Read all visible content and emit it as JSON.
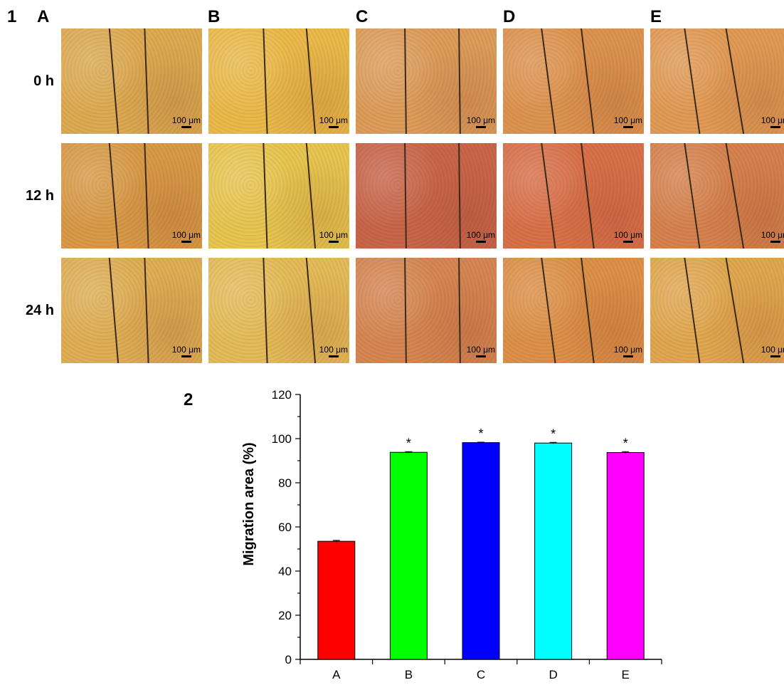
{
  "panel1_label": "1",
  "panel2_label": "2",
  "columns": [
    "A",
    "B",
    "C",
    "D",
    "E"
  ],
  "rows": [
    "0 h",
    "12 h",
    "24 h"
  ],
  "scale_bar_label": "100 μm",
  "tile_colors": [
    [
      "#dcaa52",
      "#eab94a",
      "#dc9c5a",
      "#dd9350",
      "#e09a55"
    ],
    [
      "#d89a48",
      "#e7c550",
      "#c8664a",
      "#d8714a",
      "#d5824e"
    ],
    [
      "#deae55",
      "#e4bb58",
      "#d58652",
      "#dc9048",
      "#e0a750"
    ]
  ],
  "chart_data": {
    "type": "bar",
    "categories": [
      "A",
      "B",
      "C",
      "D",
      "E"
    ],
    "values": [
      53.5,
      93.8,
      98.2,
      98.0,
      93.7
    ],
    "errors": [
      0.4,
      0.3,
      0.2,
      0.3,
      0.4
    ],
    "significance": [
      "",
      "*",
      "*",
      "*",
      "*"
    ],
    "colors": [
      "#ff0000",
      "#00ff00",
      "#0000ff",
      "#00ffff",
      "#ff00ff"
    ],
    "ylabel": "Migration area (%)",
    "xlabel": "",
    "ylim": [
      0,
      120
    ],
    "yticks": [
      0,
      20,
      40,
      60,
      80,
      100,
      120
    ]
  }
}
